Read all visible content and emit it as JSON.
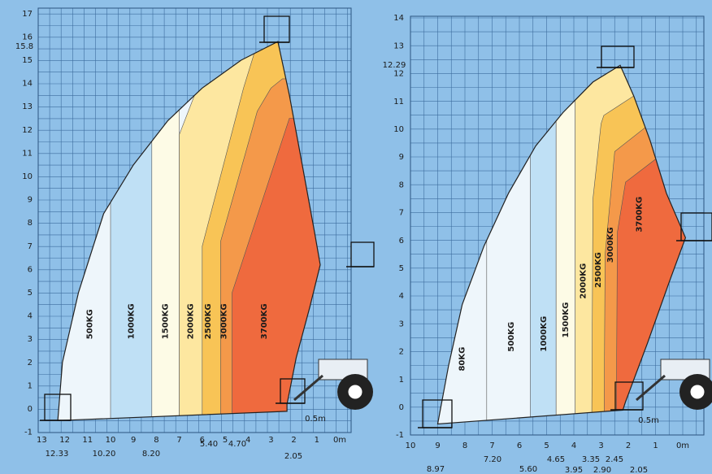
{
  "left_panel": {
    "y_labels": [
      17,
      16,
      15,
      14,
      13,
      12,
      11,
      10,
      9,
      8,
      7,
      6,
      5,
      4,
      3,
      2,
      1,
      0,
      -1
    ],
    "x_labels": [
      "13",
      "12",
      "11",
      "10",
      "9",
      "8",
      "7",
      "6",
      "5",
      "4",
      "3",
      "2",
      "1",
      "0m"
    ],
    "max_height": "15.8",
    "reach_labels": [
      "12.33",
      "10.20",
      "8.20",
      "5.40",
      "4.70",
      "2.05"
    ],
    "scale_label": "0.5m",
    "zone_labels": [
      "500KG",
      "1000KG",
      "1500KG",
      "2000KG",
      "2500KG",
      "3000KG",
      "3700KG"
    ]
  },
  "right_panel": {
    "y_labels": [
      14,
      13,
      12,
      11,
      10,
      9,
      8,
      7,
      6,
      5,
      4,
      3,
      2,
      1,
      0,
      -1
    ],
    "x_labels": [
      "10",
      "9",
      "8",
      "7",
      "6",
      "5",
      "4",
      "3",
      "2",
      "1",
      "0m"
    ],
    "max_height": "12.29",
    "reach_labels": [
      "8.97",
      "7.20",
      "5.60",
      "4.65",
      "3.95",
      "3.35",
      "2.90",
      "2.45",
      "2.05"
    ],
    "scale_label": "0.5m",
    "zone_labels": [
      "80KG",
      "500KG",
      "1000KG",
      "1500KG",
      "2000KG",
      "2500KG",
      "3000KG",
      "3700KG"
    ]
  }
}
